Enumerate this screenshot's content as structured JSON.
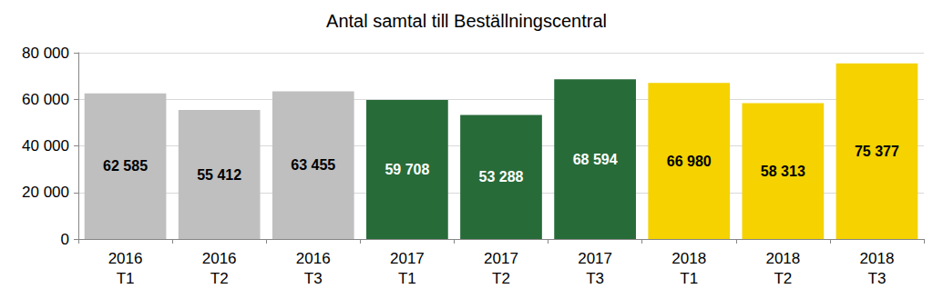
{
  "chart_data": {
    "type": "bar",
    "title": "Antal samtal till Beställningscentral",
    "categories": [
      "2016\nT1",
      "2016\nT2",
      "2016\nT3",
      "2017\nT1",
      "2017\nT2",
      "2017\nT3",
      "2018\nT1",
      "2018\nT2",
      "2018\nT3"
    ],
    "values": [
      62585,
      55412,
      63455,
      59708,
      53288,
      68594,
      66980,
      58313,
      75377
    ],
    "value_labels": [
      "62 585",
      "55 412",
      "63 455",
      "59 708",
      "53 288",
      "68 594",
      "66 980",
      "58 313",
      "75 377"
    ],
    "colors": [
      "#bfbfbf",
      "#bfbfbf",
      "#bfbfbf",
      "#276b39",
      "#276b39",
      "#276b39",
      "#f5d200",
      "#f5d200",
      "#f5d200"
    ],
    "ylim": [
      0,
      80000
    ],
    "yticks": [
      0,
      {
        "value": 20000,
        "label": "20 000"
      },
      {
        "value": 40000,
        "label": "40 000"
      },
      {
        "value": 60000,
        "label": "60 000"
      },
      {
        "value": 80000,
        "label": "80 000"
      }
    ],
    "grid": true,
    "data_labels": true
  }
}
